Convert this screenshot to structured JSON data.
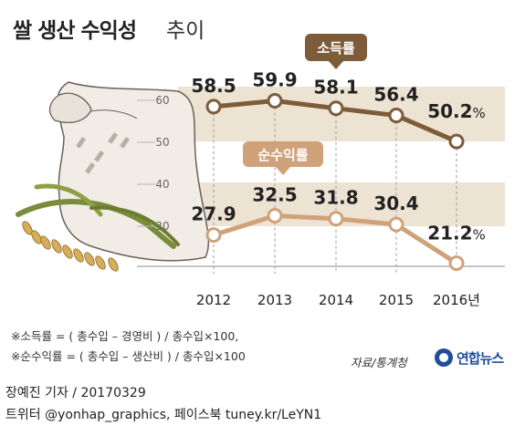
{
  "title": {
    "main": "쌀 생산 수익성",
    "sub": "추이"
  },
  "chart_data": {
    "type": "line",
    "categories": [
      "2012",
      "2013",
      "2014",
      "2015",
      "2016년"
    ],
    "ylim": [
      20,
      65
    ],
    "yticks": [
      30,
      40,
      50,
      60
    ],
    "grid": false,
    "series": [
      {
        "name": "소득률",
        "values": [
          58.5,
          59.9,
          58.1,
          56.4,
          50.2
        ],
        "labels": [
          "58.5",
          "59.9",
          "58.1",
          "56.4",
          "50.2"
        ],
        "color": "#7d5c3a"
      },
      {
        "name": "순수익률",
        "values": [
          27.9,
          32.5,
          31.8,
          30.4,
          21.2
        ],
        "labels": [
          "27.9",
          "32.5",
          "31.8",
          "30.4",
          "21.2"
        ],
        "color": "#cfa27a"
      }
    ],
    "last_label_unit": "%"
  },
  "notes": [
    "※소득률 = ( 총수입 – 경영비 ) / 총수입×100,",
    "※순수익률 = ( 총수입 – 생산비 ) / 총수입×100"
  ],
  "source": "자료/통계청",
  "logo": "연합뉴스",
  "credits": [
    "장예진 기자 / 20170329",
    "트위터 @yonhap_graphics, 페이스북 tuney.kr/LeYN1"
  ]
}
